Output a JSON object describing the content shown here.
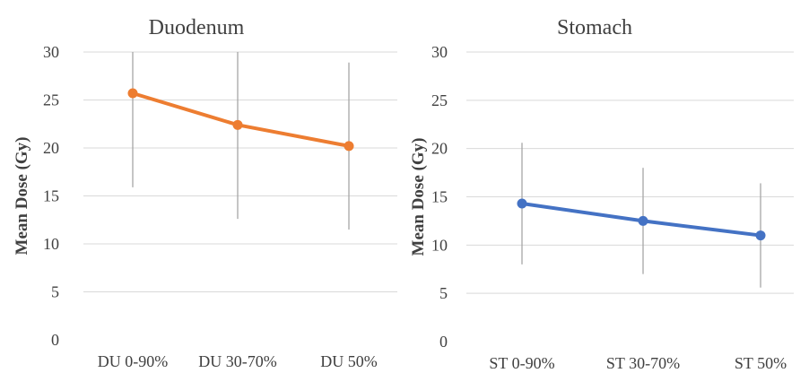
{
  "chart_data": [
    {
      "type": "line",
      "title": "Duodenum",
      "xlabel": "",
      "ylabel": "Mean Dose (Gy)",
      "categories": [
        "DU 0-90%",
        "DU 30-70%",
        "DU 50%"
      ],
      "yticks": [
        "0",
        "5",
        "10",
        "15",
        "20",
        "25",
        "30"
      ],
      "ylim": [
        0,
        30
      ],
      "grid": true,
      "series": [
        {
          "values": [
            25.7,
            22.4,
            20.2
          ],
          "error_low": [
            15.9,
            12.6,
            11.5
          ],
          "error_high": [
            30,
            30,
            28.9
          ],
          "color": "#ED7D31"
        }
      ]
    },
    {
      "type": "line",
      "title": "Stomach",
      "xlabel": "",
      "ylabel": "Mean Dose (Gy)",
      "categories": [
        "ST 0-90%",
        "ST 30-70%",
        "ST 50%"
      ],
      "yticks": [
        "0",
        "5",
        "10",
        "15",
        "20",
        "25",
        "30"
      ],
      "ylim": [
        0,
        30
      ],
      "grid": true,
      "series": [
        {
          "values": [
            14.3,
            12.5,
            11.0
          ],
          "error_low": [
            8.0,
            7.0,
            5.6
          ],
          "error_high": [
            20.6,
            18.0,
            16.4
          ],
          "color": "#4472C4"
        }
      ]
    }
  ]
}
